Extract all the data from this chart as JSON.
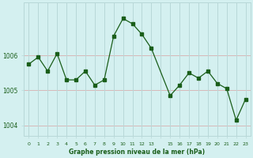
{
  "x": [
    0,
    1,
    2,
    3,
    4,
    5,
    6,
    7,
    8,
    9,
    10,
    11,
    12,
    13,
    15,
    16,
    17,
    18,
    19,
    20,
    21,
    22,
    23
  ],
  "y": [
    1005.75,
    1005.95,
    1005.55,
    1006.05,
    1005.3,
    1005.3,
    1005.55,
    1005.15,
    1005.3,
    1006.55,
    1007.05,
    1006.9,
    1006.6,
    1006.2,
    1004.85,
    1005.15,
    1005.5,
    1005.35,
    1005.55,
    1005.2,
    1005.05,
    1004.15,
    1004.75
  ],
  "line_color": "#1a5e1a",
  "marker_color": "#1a5e1a",
  "bg_color": "#d4f0f0",
  "grid_color_v": "#b8d8d8",
  "grid_color_h": "#d8b8b8",
  "text_color": "#1a5e1a",
  "xlabel": "Graphe pression niveau de la mer (hPa)",
  "ytick_labels": [
    "1004",
    "1005",
    "1006"
  ],
  "yticks": [
    1004,
    1005,
    1006
  ],
  "ylim": [
    1003.7,
    1007.5
  ],
  "xlim": [
    -0.5,
    23.5
  ]
}
